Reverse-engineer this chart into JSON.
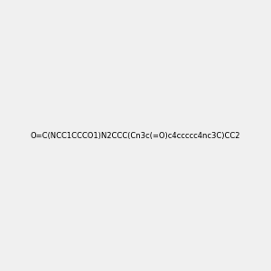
{
  "smiles": "O=C(NCC1CCCO1)N2CCC(Cn3c(=O)c4ccccc4nc3C)CC2",
  "image_size": 300,
  "background_color": "#f0f0f0",
  "bond_color": "#000000",
  "atom_colors": {
    "N": "#0000ff",
    "O": "#ff0000"
  }
}
